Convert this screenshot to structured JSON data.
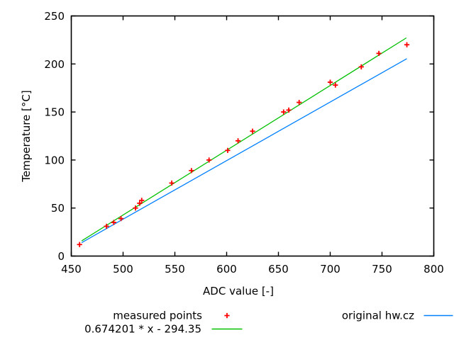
{
  "chart_data": {
    "type": "scatter",
    "title": "",
    "xlabel": "ADC value [-]",
    "ylabel": "Temperature [°C]",
    "grid": false,
    "legend_position": "below-plot",
    "x_axis": {
      "min": 450,
      "max": 800,
      "ticks": [
        450,
        500,
        550,
        600,
        650,
        700,
        750,
        800
      ]
    },
    "y_axis": {
      "min": 0,
      "max": 250,
      "ticks": [
        0,
        50,
        100,
        150,
        200,
        250
      ]
    },
    "series": [
      {
        "name": "measured points",
        "type": "scatter",
        "marker": "plus",
        "color": "#ff0000",
        "points": [
          [
            458,
            12
          ],
          [
            484,
            31
          ],
          [
            491,
            35
          ],
          [
            498,
            39
          ],
          [
            512,
            50
          ],
          [
            516,
            55
          ],
          [
            518,
            58
          ],
          [
            547,
            76
          ],
          [
            566,
            89
          ],
          [
            583,
            100
          ],
          [
            601,
            110
          ],
          [
            611,
            120
          ],
          [
            625,
            130
          ],
          [
            655,
            150
          ],
          [
            660,
            152
          ],
          [
            670,
            160
          ],
          [
            700,
            181
          ],
          [
            705,
            178
          ],
          [
            730,
            197
          ],
          [
            747,
            211
          ],
          [
            774,
            220
          ]
        ]
      },
      {
        "name": "0.674201 * x - 294.35",
        "type": "line",
        "color": "#00c000",
        "slope": 0.674201,
        "intercept": -294.35,
        "x_start": 460,
        "x_end": 773.5
      },
      {
        "name": "original hw.cz",
        "type": "line",
        "color": "#0080ff",
        "points": [
          [
            460,
            14
          ],
          [
            774,
            205.5
          ]
        ]
      }
    ],
    "axis_color": "#000000"
  }
}
